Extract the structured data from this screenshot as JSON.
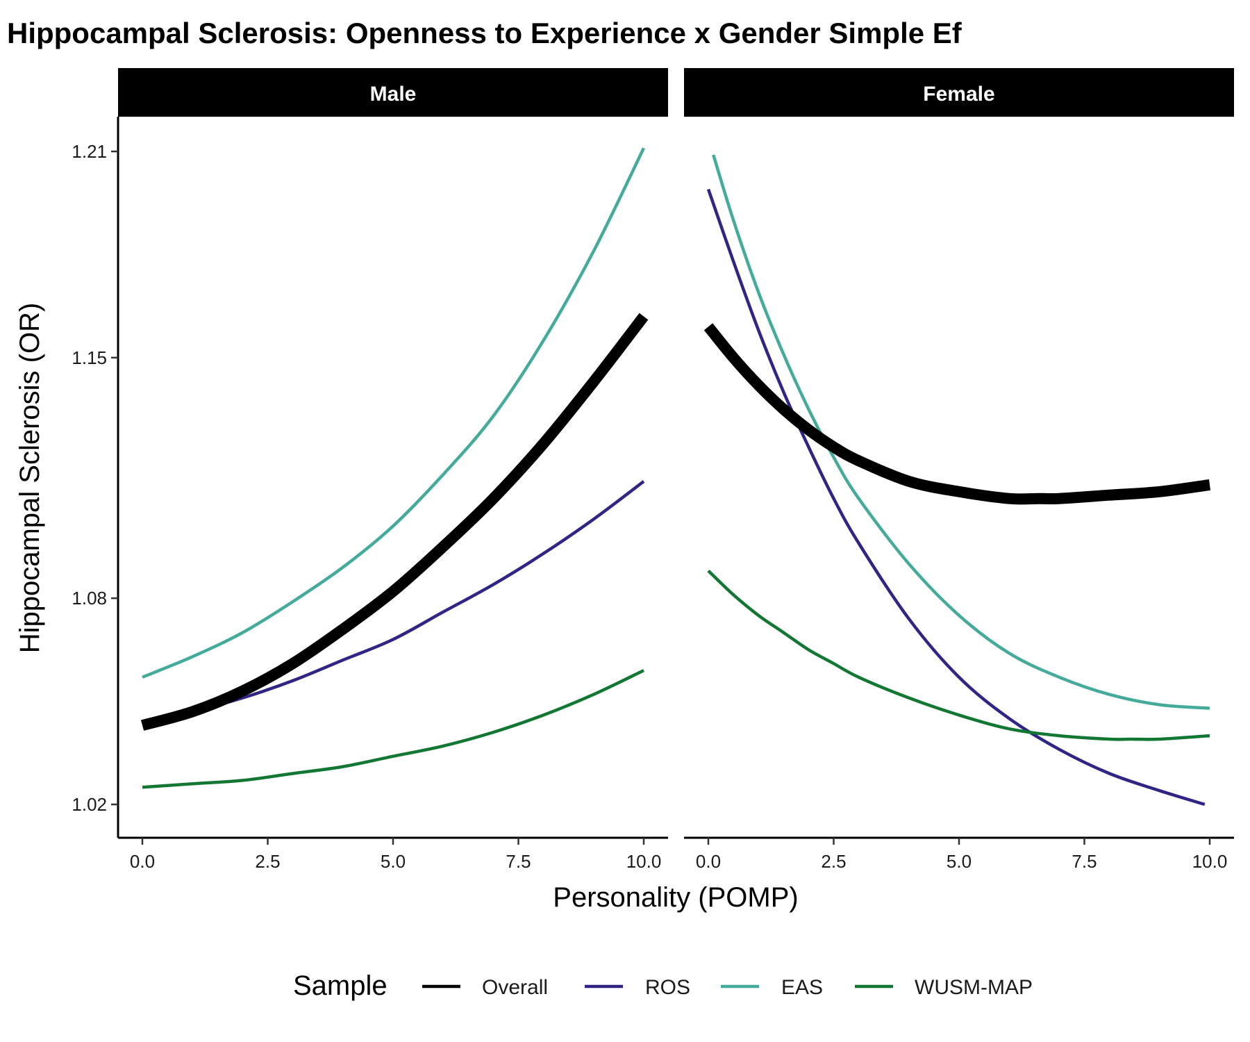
{
  "chart_data": {
    "type": "line",
    "title": "Hippocampal Sclerosis: Openness to Experience x Gender Simple Ef",
    "xlabel": "Personality (POMP)",
    "ylabel": "Hippocampal Sclerosis (OR)",
    "xlim": [
      -0.5,
      10.5
    ],
    "ylim": [
      1.01,
      1.22
    ],
    "x_ticks": [
      0,
      2.5,
      5,
      7.5,
      10
    ],
    "x_tick_labels": [
      "0.0",
      "2.5",
      "5.0",
      "7.5",
      "10.0"
    ],
    "y_ticks": [
      1.02,
      1.08,
      1.15,
      1.21
    ],
    "y_tick_labels": [
      "1.02",
      "1.08",
      "1.15",
      "1.21"
    ],
    "grid": false,
    "legend": {
      "title": "Sample",
      "position": "bottom"
    },
    "panels": [
      {
        "label": "Male",
        "series": [
          {
            "name": "Overall",
            "color": "#000000",
            "thick": true,
            "x": [
              0,
              1,
              2,
              3,
              4,
              5,
              6,
              7,
              8,
              9,
              10
            ],
            "y": [
              1.043,
              1.047,
              1.053,
              1.061,
              1.071,
              1.082,
              1.095,
              1.109,
              1.125,
              1.143,
              1.162
            ]
          },
          {
            "name": "ROS",
            "color": "#2e2585",
            "thick": false,
            "x": [
              0,
              1,
              2,
              3,
              4,
              5,
              6,
              7,
              8,
              9,
              10
            ],
            "y": [
              1.044,
              1.047,
              1.051,
              1.056,
              1.062,
              1.068,
              1.076,
              1.084,
              1.093,
              1.103,
              1.114
            ]
          },
          {
            "name": "EAS",
            "color": "#44aa99",
            "thick": false,
            "x": [
              0,
              1,
              2,
              3,
              4,
              5,
              6,
              7,
              8,
              9,
              10
            ],
            "y": [
              1.057,
              1.063,
              1.07,
              1.079,
              1.089,
              1.101,
              1.116,
              1.133,
              1.155,
              1.181,
              1.211
            ]
          },
          {
            "name": "WUSM-MAP",
            "color": "#117733",
            "thick": false,
            "x": [
              0,
              1,
              2,
              3,
              4,
              5,
              6,
              7,
              8,
              9,
              10
            ],
            "y": [
              1.025,
              1.026,
              1.027,
              1.029,
              1.031,
              1.034,
              1.037,
              1.041,
              1.046,
              1.052,
              1.059
            ]
          }
        ]
      },
      {
        "label": "Female",
        "series": [
          {
            "name": "Overall",
            "color": "#000000",
            "thick": true,
            "x": [
              0,
              0.5,
              1,
              1.5,
              2,
              2.5,
              3,
              4,
              5,
              6,
              6.6,
              7,
              8,
              9,
              10
            ],
            "y": [
              1.159,
              1.15,
              1.142,
              1.135,
              1.129,
              1.124,
              1.12,
              1.114,
              1.111,
              1.109,
              1.109,
              1.109,
              1.11,
              1.111,
              1.113
            ]
          },
          {
            "name": "ROS",
            "color": "#2e2585",
            "thick": false,
            "x": [
              0,
              0.5,
              1,
              1.5,
              2,
              2.5,
              3,
              4,
              5,
              6,
              7,
              8,
              9,
              9.9
            ],
            "y": [
              1.199,
              1.178,
              1.158,
              1.14,
              1.124,
              1.109,
              1.096,
              1.074,
              1.057,
              1.045,
              1.036,
              1.029,
              1.024,
              1.02
            ]
          },
          {
            "name": "EAS",
            "color": "#44aa99",
            "thick": false,
            "x": [
              0.1,
              0.5,
              1,
              1.5,
              2,
              2.5,
              3,
              4,
              5,
              6,
              7,
              8,
              9,
              10
            ],
            "y": [
              1.209,
              1.19,
              1.169,
              1.151,
              1.135,
              1.121,
              1.109,
              1.09,
              1.075,
              1.064,
              1.057,
              1.052,
              1.049,
              1.048
            ]
          },
          {
            "name": "WUSM-MAP",
            "color": "#117733",
            "thick": false,
            "x": [
              0,
              0.5,
              1,
              1.5,
              2,
              2.5,
              3,
              4,
              5,
              6,
              7,
              8,
              8.4,
              9,
              10
            ],
            "y": [
              1.088,
              1.081,
              1.075,
              1.07,
              1.065,
              1.061,
              1.057,
              1.051,
              1.046,
              1.042,
              1.04,
              1.039,
              1.039,
              1.039,
              1.04
            ]
          }
        ]
      }
    ]
  }
}
